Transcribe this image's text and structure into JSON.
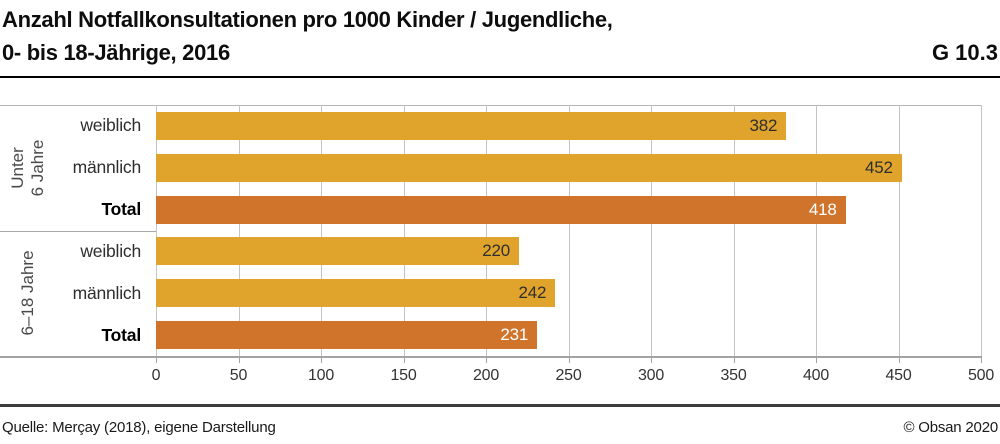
{
  "header": {
    "title_line1": "Anzahl Notfallkonsultationen pro 1000 Kinder / Jugendliche,",
    "title_line2": "0- bis 18-Jährige, 2016",
    "figure_code": "G 10.3"
  },
  "footer": {
    "source": "Quelle: Merçay (2018), eigene Darstellung",
    "copyright": "© Obsan 2020"
  },
  "colors": {
    "bar_default": "#e0a42c",
    "bar_total": "#d0742c",
    "grid": "#c4c4c4",
    "value_on_default": "#2e2e2e",
    "value_on_total": "#ffffff"
  },
  "chart_data": {
    "type": "bar",
    "orientation": "horizontal",
    "title": "Anzahl Notfallkonsultationen pro 1000 Kinder / Jugendliche, 0- bis 18-Jährige, 2016",
    "figure_code": "G 10.3",
    "xlabel": "",
    "ylabel": "",
    "xlim": [
      0,
      500
    ],
    "xticks": [
      0,
      50,
      100,
      150,
      200,
      250,
      300,
      350,
      400,
      450,
      500
    ],
    "grid": true,
    "legend": false,
    "groups": [
      {
        "label": "Unter 6 Jahre",
        "label_lines": [
          "Unter",
          "6 Jahre"
        ],
        "bars": [
          {
            "category": "weiblich",
            "value": 382,
            "total": false
          },
          {
            "category": "männlich",
            "value": 452,
            "total": false
          },
          {
            "category": "Total",
            "value": 418,
            "total": true
          }
        ]
      },
      {
        "label": "6–18 Jahre",
        "label_lines": [
          "6–18 Jahre"
        ],
        "bars": [
          {
            "category": "weiblich",
            "value": 220,
            "total": false
          },
          {
            "category": "männlich",
            "value": 242,
            "total": false
          },
          {
            "category": "Total",
            "value": 231,
            "total": true
          }
        ]
      }
    ]
  }
}
